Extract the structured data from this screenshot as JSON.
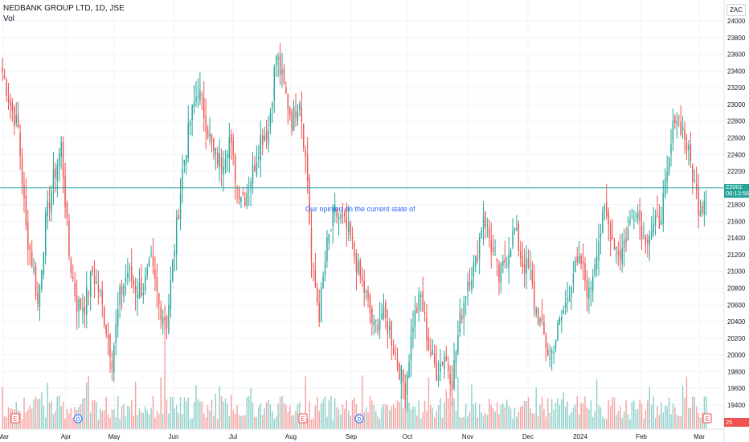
{
  "header": {
    "title": "NEDBANK GROUP LTD, 1D, JSE",
    "volume_label": "Vol"
  },
  "currency": "ZAC",
  "last_price_tag": {
    "price": "22001",
    "countdown": "08:13:56"
  },
  "volume_tag": "25",
  "annotation": "Our opinion on the current state of",
  "colors": {
    "up": "#26a69a",
    "down": "#ef5350",
    "up_volume": "#8fd1ca",
    "down_volume": "#f6a3a1",
    "grid": "#f0f3fa",
    "axis_text": "#131722",
    "price_line": "#26a69a"
  },
  "chart_data": {
    "type": "candlestick",
    "title": "NEDBANK GROUP LTD, 1D, JSE",
    "xlabel": "",
    "ylabel": "",
    "ylim": [
      19300,
      24100
    ],
    "y_ticks": [
      19400,
      19600,
      19800,
      20000,
      20200,
      20400,
      20600,
      20800,
      21000,
      21200,
      21400,
      21600,
      21800,
      22000,
      22200,
      22400,
      22600,
      22800,
      23000,
      23200,
      23400,
      23600,
      23800,
      24000
    ],
    "x_ticks": [
      "Mar",
      "Apr",
      "May",
      "Jun",
      "Jul",
      "Aug",
      "Sep",
      "Oct",
      "Nov",
      "Dec",
      "2024",
      "Feb",
      "Mar"
    ],
    "last_price": 22001,
    "events": [
      {
        "type": "E",
        "at": "Mar"
      },
      {
        "type": "D",
        "at": "Apr"
      },
      {
        "type": "E",
        "at": "Aug"
      },
      {
        "type": "D",
        "at": "Sep"
      },
      {
        "type": "E",
        "at": "Mar 2024"
      }
    ],
    "anchors": [
      [
        0,
        23400
      ],
      [
        4,
        23000
      ],
      [
        8,
        22700
      ],
      [
        12,
        21500
      ],
      [
        16,
        21000
      ],
      [
        18,
        20600
      ],
      [
        22,
        21600
      ],
      [
        26,
        22100
      ],
      [
        30,
        22500
      ],
      [
        34,
        21200
      ],
      [
        38,
        20600
      ],
      [
        42,
        20600
      ],
      [
        46,
        21000
      ],
      [
        50,
        20700
      ],
      [
        54,
        20200
      ],
      [
        56,
        19950
      ],
      [
        60,
        20700
      ],
      [
        64,
        21000
      ],
      [
        68,
        20800
      ],
      [
        72,
        20800
      ],
      [
        76,
        21100
      ],
      [
        80,
        20600
      ],
      [
        84,
        20400
      ],
      [
        88,
        21300
      ],
      [
        92,
        22200
      ],
      [
        96,
        22800
      ],
      [
        100,
        23200
      ],
      [
        104,
        22800
      ],
      [
        108,
        22400
      ],
      [
        112,
        22300
      ],
      [
        116,
        22600
      ],
      [
        120,
        22000
      ],
      [
        124,
        21900
      ],
      [
        128,
        22200
      ],
      [
        132,
        22600
      ],
      [
        136,
        22700
      ],
      [
        140,
        23600
      ],
      [
        144,
        23200
      ],
      [
        148,
        22800
      ],
      [
        152,
        23100
      ],
      [
        156,
        22100
      ],
      [
        158,
        21100
      ],
      [
        162,
        20500
      ],
      [
        166,
        21300
      ],
      [
        170,
        21700
      ],
      [
        174,
        21600
      ],
      [
        178,
        21400
      ],
      [
        182,
        21000
      ],
      [
        186,
        20700
      ],
      [
        190,
        20300
      ],
      [
        194,
        20500
      ],
      [
        198,
        20300
      ],
      [
        202,
        19900
      ],
      [
        206,
        19600
      ],
      [
        210,
        20400
      ],
      [
        214,
        20700
      ],
      [
        218,
        20100
      ],
      [
        222,
        19800
      ],
      [
        226,
        20000
      ],
      [
        230,
        19700
      ],
      [
        234,
        20400
      ],
      [
        238,
        20900
      ],
      [
        242,
        21100
      ],
      [
        246,
        21700
      ],
      [
        250,
        21300
      ],
      [
        254,
        20900
      ],
      [
        258,
        21200
      ],
      [
        262,
        21500
      ],
      [
        266,
        21100
      ],
      [
        270,
        21000
      ],
      [
        272,
        20600
      ],
      [
        276,
        20300
      ],
      [
        280,
        19950
      ],
      [
        284,
        20300
      ],
      [
        288,
        20600
      ],
      [
        292,
        21000
      ],
      [
        296,
        21100
      ],
      [
        300,
        20700
      ],
      [
        304,
        21300
      ],
      [
        308,
        21700
      ],
      [
        312,
        21400
      ],
      [
        316,
        21200
      ],
      [
        320,
        21500
      ],
      [
        324,
        21800
      ],
      [
        328,
        21400
      ],
      [
        332,
        21500
      ],
      [
        336,
        21600
      ],
      [
        340,
        22100
      ],
      [
        344,
        22900
      ],
      [
        348,
        22700
      ],
      [
        352,
        22300
      ],
      [
        356,
        21800
      ],
      [
        358,
        21800
      ],
      [
        360,
        22001
      ]
    ]
  }
}
